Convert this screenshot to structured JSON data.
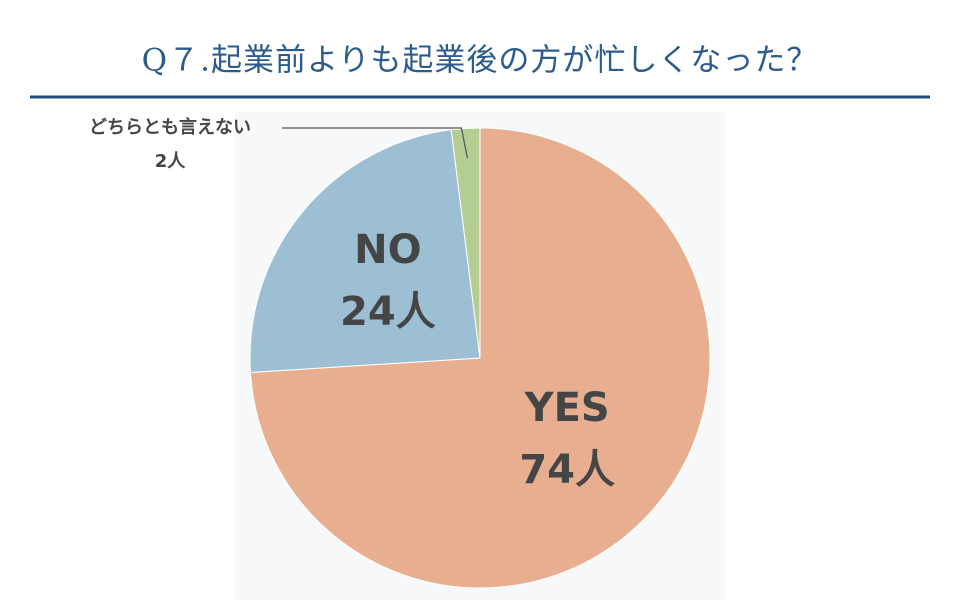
{
  "chart_data": {
    "type": "pie",
    "title": "Q７.起業前よりも起業後の方が忙しくなった？",
    "categories": [
      "YES",
      "NO",
      "どちらとも言えない"
    ],
    "values": [
      74,
      24,
      2
    ],
    "value_labels": [
      "74人",
      "24人",
      "2人"
    ],
    "colors": [
      "#e8ae90",
      "#9dbfd4",
      "#b4cd92"
    ]
  }
}
